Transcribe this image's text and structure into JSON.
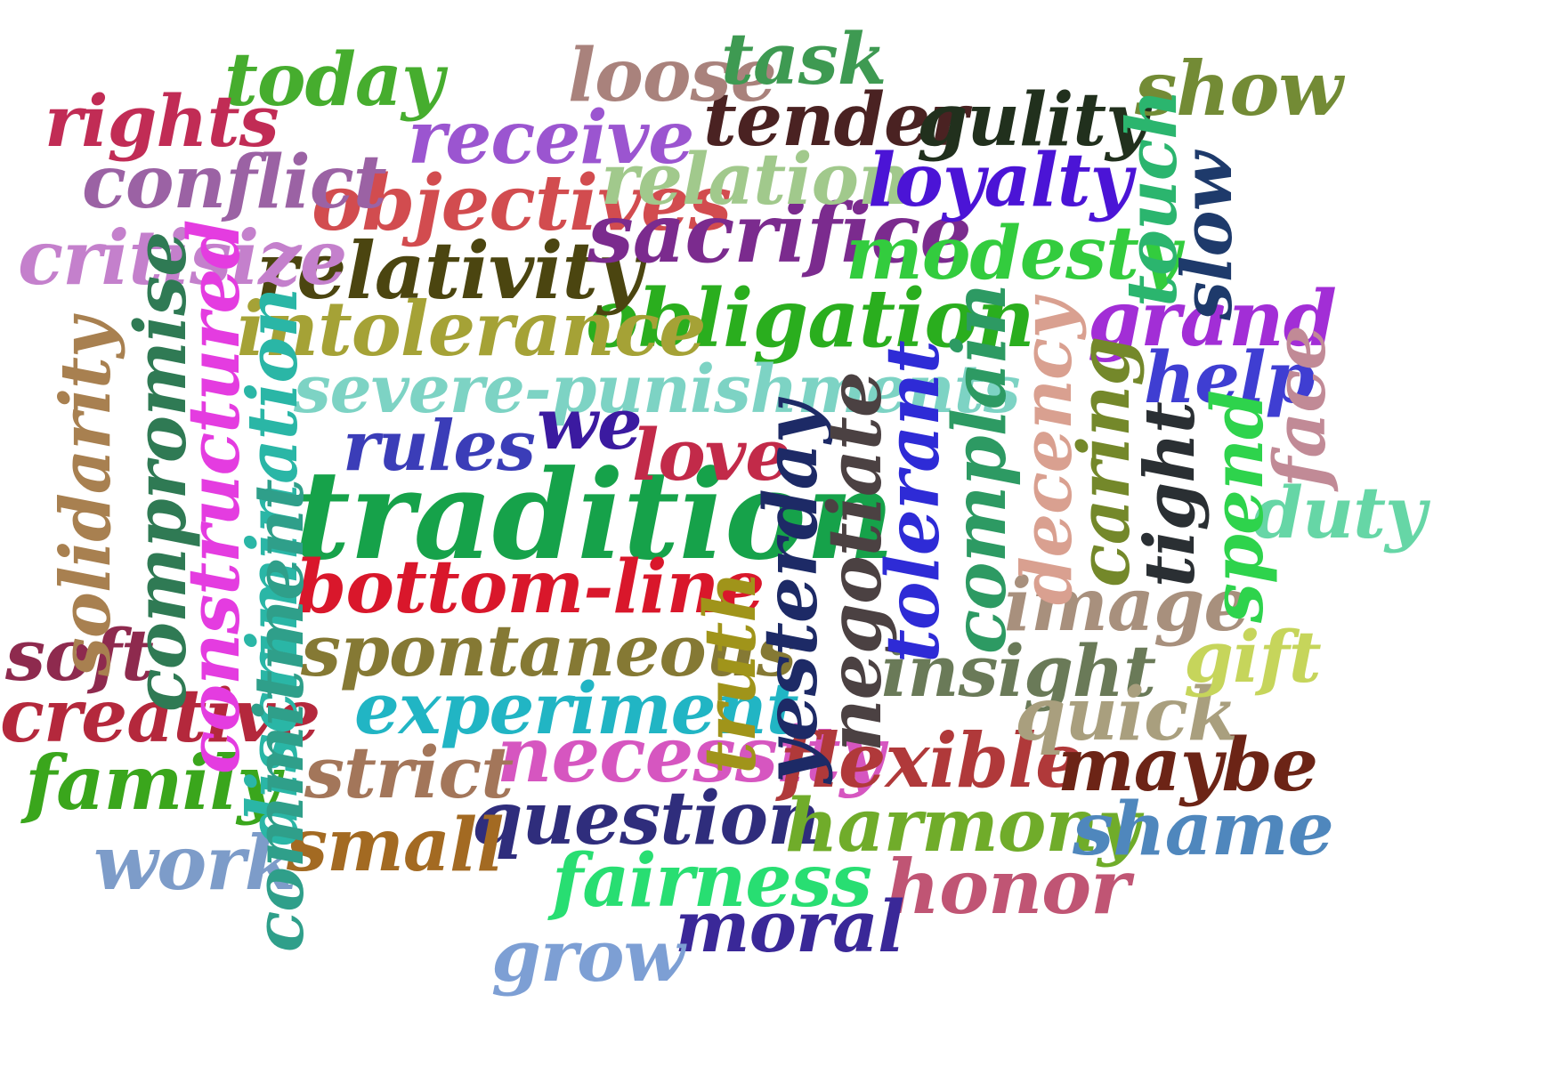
{
  "words": [
    {
      "text": "tradition",
      "color": "#16a24a"
    },
    {
      "text": "obligation",
      "color": "#2aae1e"
    },
    {
      "text": "bottom-line",
      "color": "#d9172b"
    },
    {
      "text": "spontaneous",
      "color": "#857934"
    },
    {
      "text": "severe-punishments",
      "color": "#7dd3c4"
    },
    {
      "text": "intolerance",
      "color": "#a5a236"
    },
    {
      "text": "relativity",
      "color": "#4b4510"
    },
    {
      "text": "objectives",
      "color": "#d24c4f"
    },
    {
      "text": "sacrifice",
      "color": "#7b2b8e"
    },
    {
      "text": "relation",
      "color": "#a1c98c"
    },
    {
      "text": "receive",
      "color": "#9b55d0"
    },
    {
      "text": "tender",
      "color": "#4a2222"
    },
    {
      "text": "gulity",
      "color": "#21301d"
    },
    {
      "text": "loyalty",
      "color": "#4b14d6"
    },
    {
      "text": "modesty",
      "color": "#33cc3e"
    },
    {
      "text": "loose",
      "color": "#a9827c"
    },
    {
      "text": "task",
      "color": "#3e9a52"
    },
    {
      "text": "today",
      "color": "#46ad2e"
    },
    {
      "text": "rights",
      "color": "#c12c55"
    },
    {
      "text": "conflict",
      "color": "#9b62a4"
    },
    {
      "text": "critisize",
      "color": "#c480cc"
    },
    {
      "text": "show",
      "color": "#738b35"
    },
    {
      "text": "grand",
      "color": "#a22ed6"
    },
    {
      "text": "help",
      "color": "#3f3ed2"
    },
    {
      "text": "rules",
      "color": "#3b3db8"
    },
    {
      "text": "we",
      "color": "#3b1aa0"
    },
    {
      "text": "love",
      "color": "#c22a49"
    },
    {
      "text": "experiment",
      "color": "#21b5c4"
    },
    {
      "text": "necessity",
      "color": "#d656c0"
    },
    {
      "text": "strict",
      "color": "#a3765a"
    },
    {
      "text": "question",
      "color": "#2f2d7c"
    },
    {
      "text": "flexible",
      "color": "#b0393a"
    },
    {
      "text": "maybe",
      "color": "#6c2416"
    },
    {
      "text": "harmony",
      "color": "#70ac2a"
    },
    {
      "text": "shame",
      "color": "#4f87bd"
    },
    {
      "text": "honor",
      "color": "#c05574"
    },
    {
      "text": "fairness",
      "color": "#28de72"
    },
    {
      "text": "moral",
      "color": "#3a2898"
    },
    {
      "text": "grow",
      "color": "#7d9fd4"
    },
    {
      "text": "small",
      "color": "#a36a22"
    },
    {
      "text": "work",
      "color": "#7d9cc9"
    },
    {
      "text": "family",
      "color": "#3aa61c"
    },
    {
      "text": "creative",
      "color": "#b4283c"
    },
    {
      "text": "soft",
      "color": "#8e2a4e"
    },
    {
      "text": "insight",
      "color": "#6a7a58"
    },
    {
      "text": "quick",
      "color": "#a99f7e"
    },
    {
      "text": "image",
      "color": "#a8907d"
    },
    {
      "text": "gift",
      "color": "#c6d55b"
    },
    {
      "text": "duty",
      "color": "#66d6a6"
    },
    {
      "text": "solidarity",
      "color": "#a88050"
    },
    {
      "text": "compromise",
      "color": "#2f7a54"
    },
    {
      "text": "constructured",
      "color": "#e43ce0"
    },
    {
      "text": "discrimination",
      "color": "#2ab6a6"
    },
    {
      "text": "commitment",
      "color": "#2f9f8a"
    },
    {
      "text": "truth",
      "color": "#a0941a"
    },
    {
      "text": "yesterday",
      "color": "#1d2a66"
    },
    {
      "text": "negotiate",
      "color": "#4b4142"
    },
    {
      "text": "tolerant",
      "color": "#2e2bd6"
    },
    {
      "text": "complain",
      "color": "#2d9a63"
    },
    {
      "text": "decency",
      "color": "#d9a090"
    },
    {
      "text": "caring",
      "color": "#74882a"
    },
    {
      "text": "tight",
      "color": "#2a2f33"
    },
    {
      "text": "spend",
      "color": "#2ed34c"
    },
    {
      "text": "face",
      "color": "#c18a96"
    },
    {
      "text": "touch",
      "color": "#2bb56e"
    },
    {
      "text": "slow",
      "color": "#1e3a6b"
    }
  ]
}
